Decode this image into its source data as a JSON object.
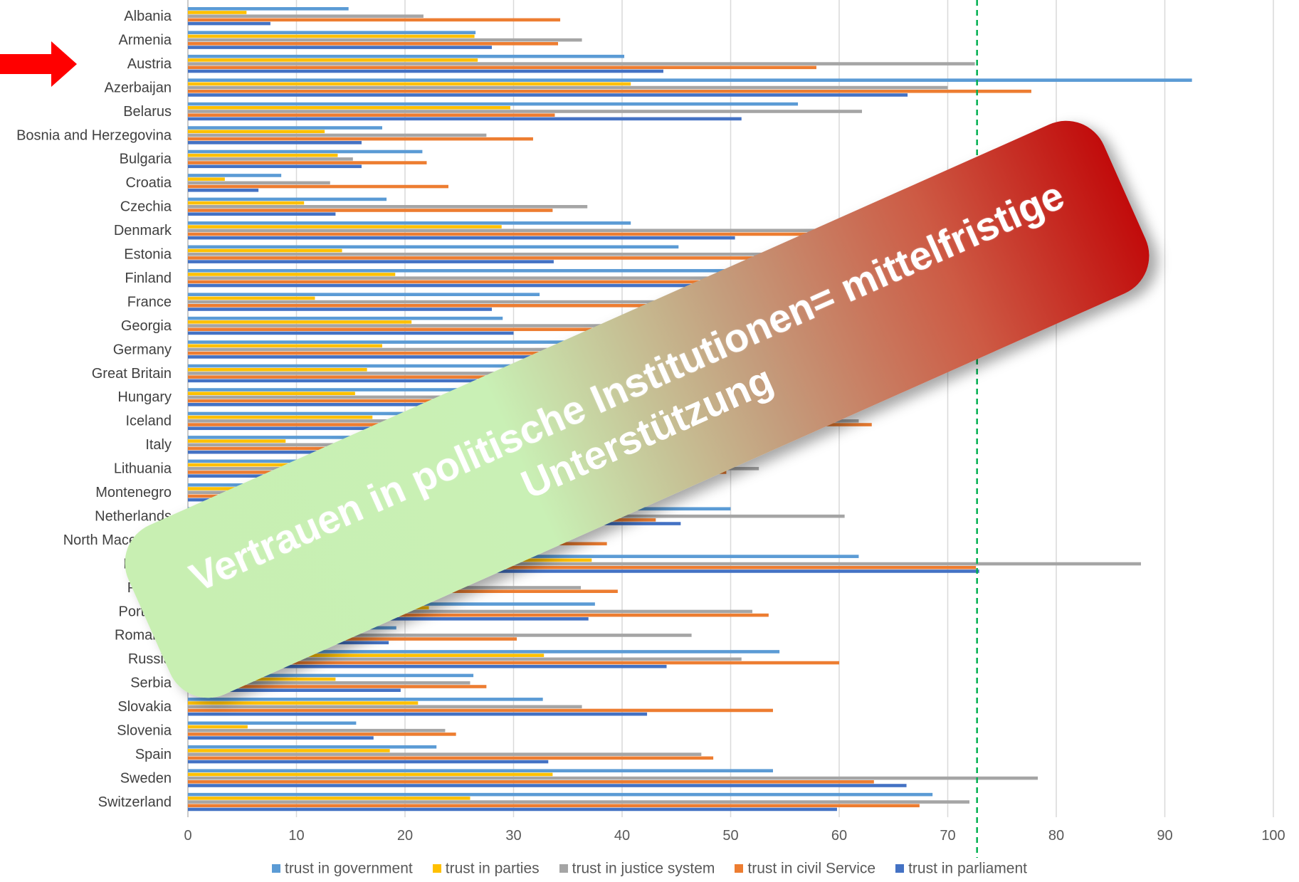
{
  "chart_data": {
    "type": "bar",
    "orientation": "horizontal",
    "categories": [
      "Albania",
      "Armenia",
      "Austria",
      "Azerbaijan",
      "Belarus",
      "Bosnia and Herzegovina",
      "Bulgaria",
      "Croatia",
      "Czechia",
      "Denmark",
      "Estonia",
      "Finland",
      "France",
      "Georgia",
      "Germany",
      "Great Britain",
      "Hungary",
      "Iceland",
      "Italy",
      "Lithuania",
      "Montenegro",
      "Netherlands",
      "North Macedonia",
      "Norway",
      "Poland",
      "Portugal",
      "Romania",
      "Russia",
      "Serbia",
      "Slovakia",
      "Slovenia",
      "Spain",
      "Sweden",
      "Switzerland"
    ],
    "series": [
      {
        "name": "trust in government",
        "color": "#5b9bd5",
        "values": [
          14.8,
          26.5,
          40.2,
          92.5,
          56.2,
          17.9,
          21.6,
          8.6,
          18.3,
          40.8,
          45.2,
          53.0,
          32.4,
          29.0,
          39.0,
          30.0,
          27.0,
          60.0,
          22.0,
          29.0,
          35.0,
          50.0,
          25.0,
          61.8,
          26.2,
          37.5,
          19.2,
          54.5,
          26.3,
          32.7,
          15.5,
          22.9,
          53.9,
          68.6
        ]
      },
      {
        "name": "trust in parties",
        "color": "#ffc000",
        "values": [
          5.4,
          26.4,
          26.7,
          40.8,
          29.7,
          12.6,
          13.8,
          3.4,
          10.7,
          28.9,
          14.2,
          19.1,
          11.7,
          20.6,
          17.9,
          16.5,
          15.4,
          17.0,
          9.0,
          10.0,
          14.0,
          26.0,
          12.0,
          37.2,
          11.0,
          22.2,
          12.1,
          32.8,
          13.6,
          21.2,
          5.5,
          18.6,
          33.6,
          26.0
        ]
      },
      {
        "name": "trust in justice system",
        "color": "#a5a5a5",
        "values": [
          21.7,
          36.3,
          72.5,
          70.0,
          62.1,
          27.5,
          15.2,
          13.1,
          36.8,
          78.0,
          60.0,
          75.0,
          45.0,
          42.0,
          65.0,
          58.0,
          40.0,
          61.8,
          37.0,
          52.6,
          38.0,
          60.5,
          32.7,
          87.8,
          36.2,
          52.0,
          46.4,
          51.0,
          26.0,
          36.3,
          23.7,
          47.3,
          78.3,
          72.0
        ]
      },
      {
        "name": "trust in civil Service",
        "color": "#ed7d31",
        "values": [
          34.3,
          34.1,
          57.9,
          77.7,
          33.8,
          31.8,
          22.0,
          24.0,
          33.6,
          74.0,
          58.0,
          70.0,
          52.0,
          44.0,
          55.0,
          55.0,
          36.0,
          63.0,
          40.0,
          49.6,
          42.0,
          43.1,
          38.6,
          72.6,
          39.6,
          53.5,
          30.3,
          60.0,
          27.5,
          53.9,
          24.7,
          48.4,
          63.2,
          67.4
        ]
      },
      {
        "name": "trust in parliament",
        "color": "#4472c4",
        "values": [
          7.6,
          28.0,
          43.8,
          66.3,
          51.0,
          16.0,
          16.0,
          6.5,
          13.6,
          50.4,
          33.7,
          60.0,
          28.0,
          30.0,
          34.0,
          28.0,
          24.0,
          56.0,
          16.0,
          22.0,
          25.0,
          45.4,
          31.4,
          72.9,
          21.2,
          36.9,
          18.5,
          44.1,
          19.6,
          42.3,
          17.1,
          33.2,
          66.2,
          59.8
        ]
      }
    ],
    "xlim": [
      0,
      100
    ],
    "x_ticks": [
      "0",
      "10",
      "20",
      "30",
      "40",
      "50",
      "60",
      "70",
      "80",
      "90",
      "100"
    ],
    "reference_line": {
      "value": 72.7,
      "style": "dashed",
      "color": "#00b050"
    },
    "grid": true,
    "legend_position": "bottom"
  },
  "annotation": {
    "arrow_color": "#ff0000",
    "arrow_target": "Austria",
    "banner_line1": "Vertrauen in politische Institutionen= mittelfristige",
    "banner_line2": "Unterstützung"
  }
}
